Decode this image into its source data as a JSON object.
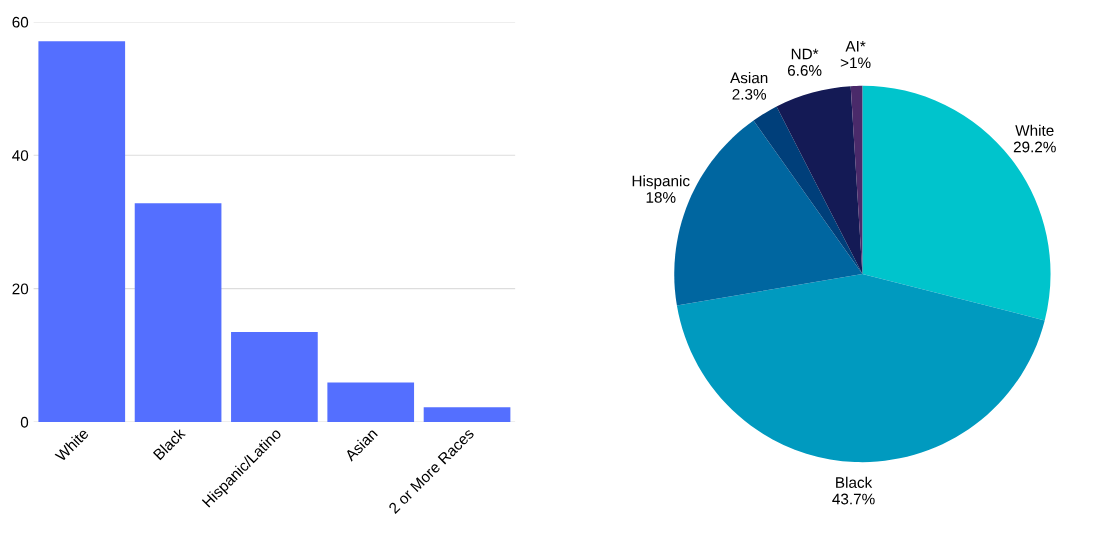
{
  "chart_data": [
    {
      "type": "bar",
      "categories": [
        "White",
        "Black",
        "Hispanic/Latino",
        "Asian",
        "2 or More Races"
      ],
      "values": [
        57.1,
        32.8,
        13.5,
        5.9,
        2.2
      ],
      "color": "#546fff",
      "ylim": [
        0,
        60
      ],
      "yticks": [
        0,
        20,
        40,
        60
      ],
      "grid": "y"
    },
    {
      "type": "pie",
      "categories": [
        "White",
        "Black",
        "Hispanic",
        "Asian",
        "ND*",
        "AI*"
      ],
      "values": [
        29.2,
        43.7,
        18,
        2.3,
        6.6,
        1
      ],
      "colors": [
        "#00c4cc",
        "#009abf",
        "#0066a0",
        "#003f7a",
        "#141a55",
        "#4a2a6a"
      ],
      "value_labels": [
        "29.2%",
        "43.7%",
        "18%",
        "2.3%",
        "6.6%",
        ">1%"
      ]
    }
  ]
}
